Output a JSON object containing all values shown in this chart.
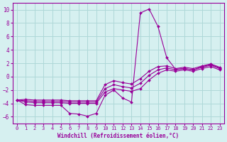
{
  "x": [
    0,
    1,
    2,
    3,
    4,
    5,
    6,
    7,
    8,
    9,
    10,
    11,
    12,
    13,
    14,
    15,
    16,
    17,
    18,
    19,
    20,
    21,
    22,
    23
  ],
  "line_main": [
    -3.5,
    -4.2,
    -4.3,
    -4.3,
    -4.3,
    -4.3,
    -5.5,
    -5.6,
    -5.9,
    -5.5,
    -2.8,
    -2.0,
    -3.2,
    -3.8,
    9.5,
    10.1,
    7.5,
    2.8,
    1.1,
    1.2,
    1.0,
    1.5,
    1.8,
    1.3
  ],
  "line_a": [
    -3.5,
    -3.8,
    -3.9,
    -3.9,
    -3.9,
    -3.9,
    -4.0,
    -4.0,
    -4.0,
    -4.0,
    -2.3,
    -1.8,
    -2.0,
    -2.2,
    -1.8,
    -0.5,
    0.5,
    1.0,
    0.8,
    1.0,
    0.8,
    1.2,
    1.5,
    1.0
  ],
  "line_b": [
    -3.5,
    -3.6,
    -3.7,
    -3.7,
    -3.7,
    -3.7,
    -3.8,
    -3.8,
    -3.8,
    -3.8,
    -1.8,
    -1.2,
    -1.5,
    -1.7,
    -1.0,
    0.2,
    1.0,
    1.3,
    1.0,
    1.2,
    1.0,
    1.4,
    1.7,
    1.2
  ],
  "line_c": [
    -3.5,
    -3.4,
    -3.5,
    -3.5,
    -3.5,
    -3.5,
    -3.6,
    -3.6,
    -3.6,
    -3.6,
    -1.2,
    -0.6,
    -0.9,
    -1.1,
    -0.3,
    0.8,
    1.5,
    1.6,
    1.2,
    1.4,
    1.2,
    1.6,
    1.9,
    1.4
  ],
  "bg_color": "#d6f0f0",
  "grid_color": "#aed8d8",
  "line_color": "#990099",
  "xlabel": "Windchill (Refroidissement éolien,°C)",
  "ylim": [
    -7,
    11
  ],
  "xlim": [
    -0.5,
    23.5
  ],
  "yticks": [
    -6,
    -4,
    -2,
    0,
    2,
    4,
    6,
    8,
    10
  ],
  "xticks": [
    0,
    1,
    2,
    3,
    4,
    5,
    6,
    7,
    8,
    9,
    10,
    11,
    12,
    13,
    14,
    15,
    16,
    17,
    18,
    19,
    20,
    21,
    22,
    23
  ],
  "marker": "D",
  "markersize": 2.0,
  "linewidth": 0.8
}
